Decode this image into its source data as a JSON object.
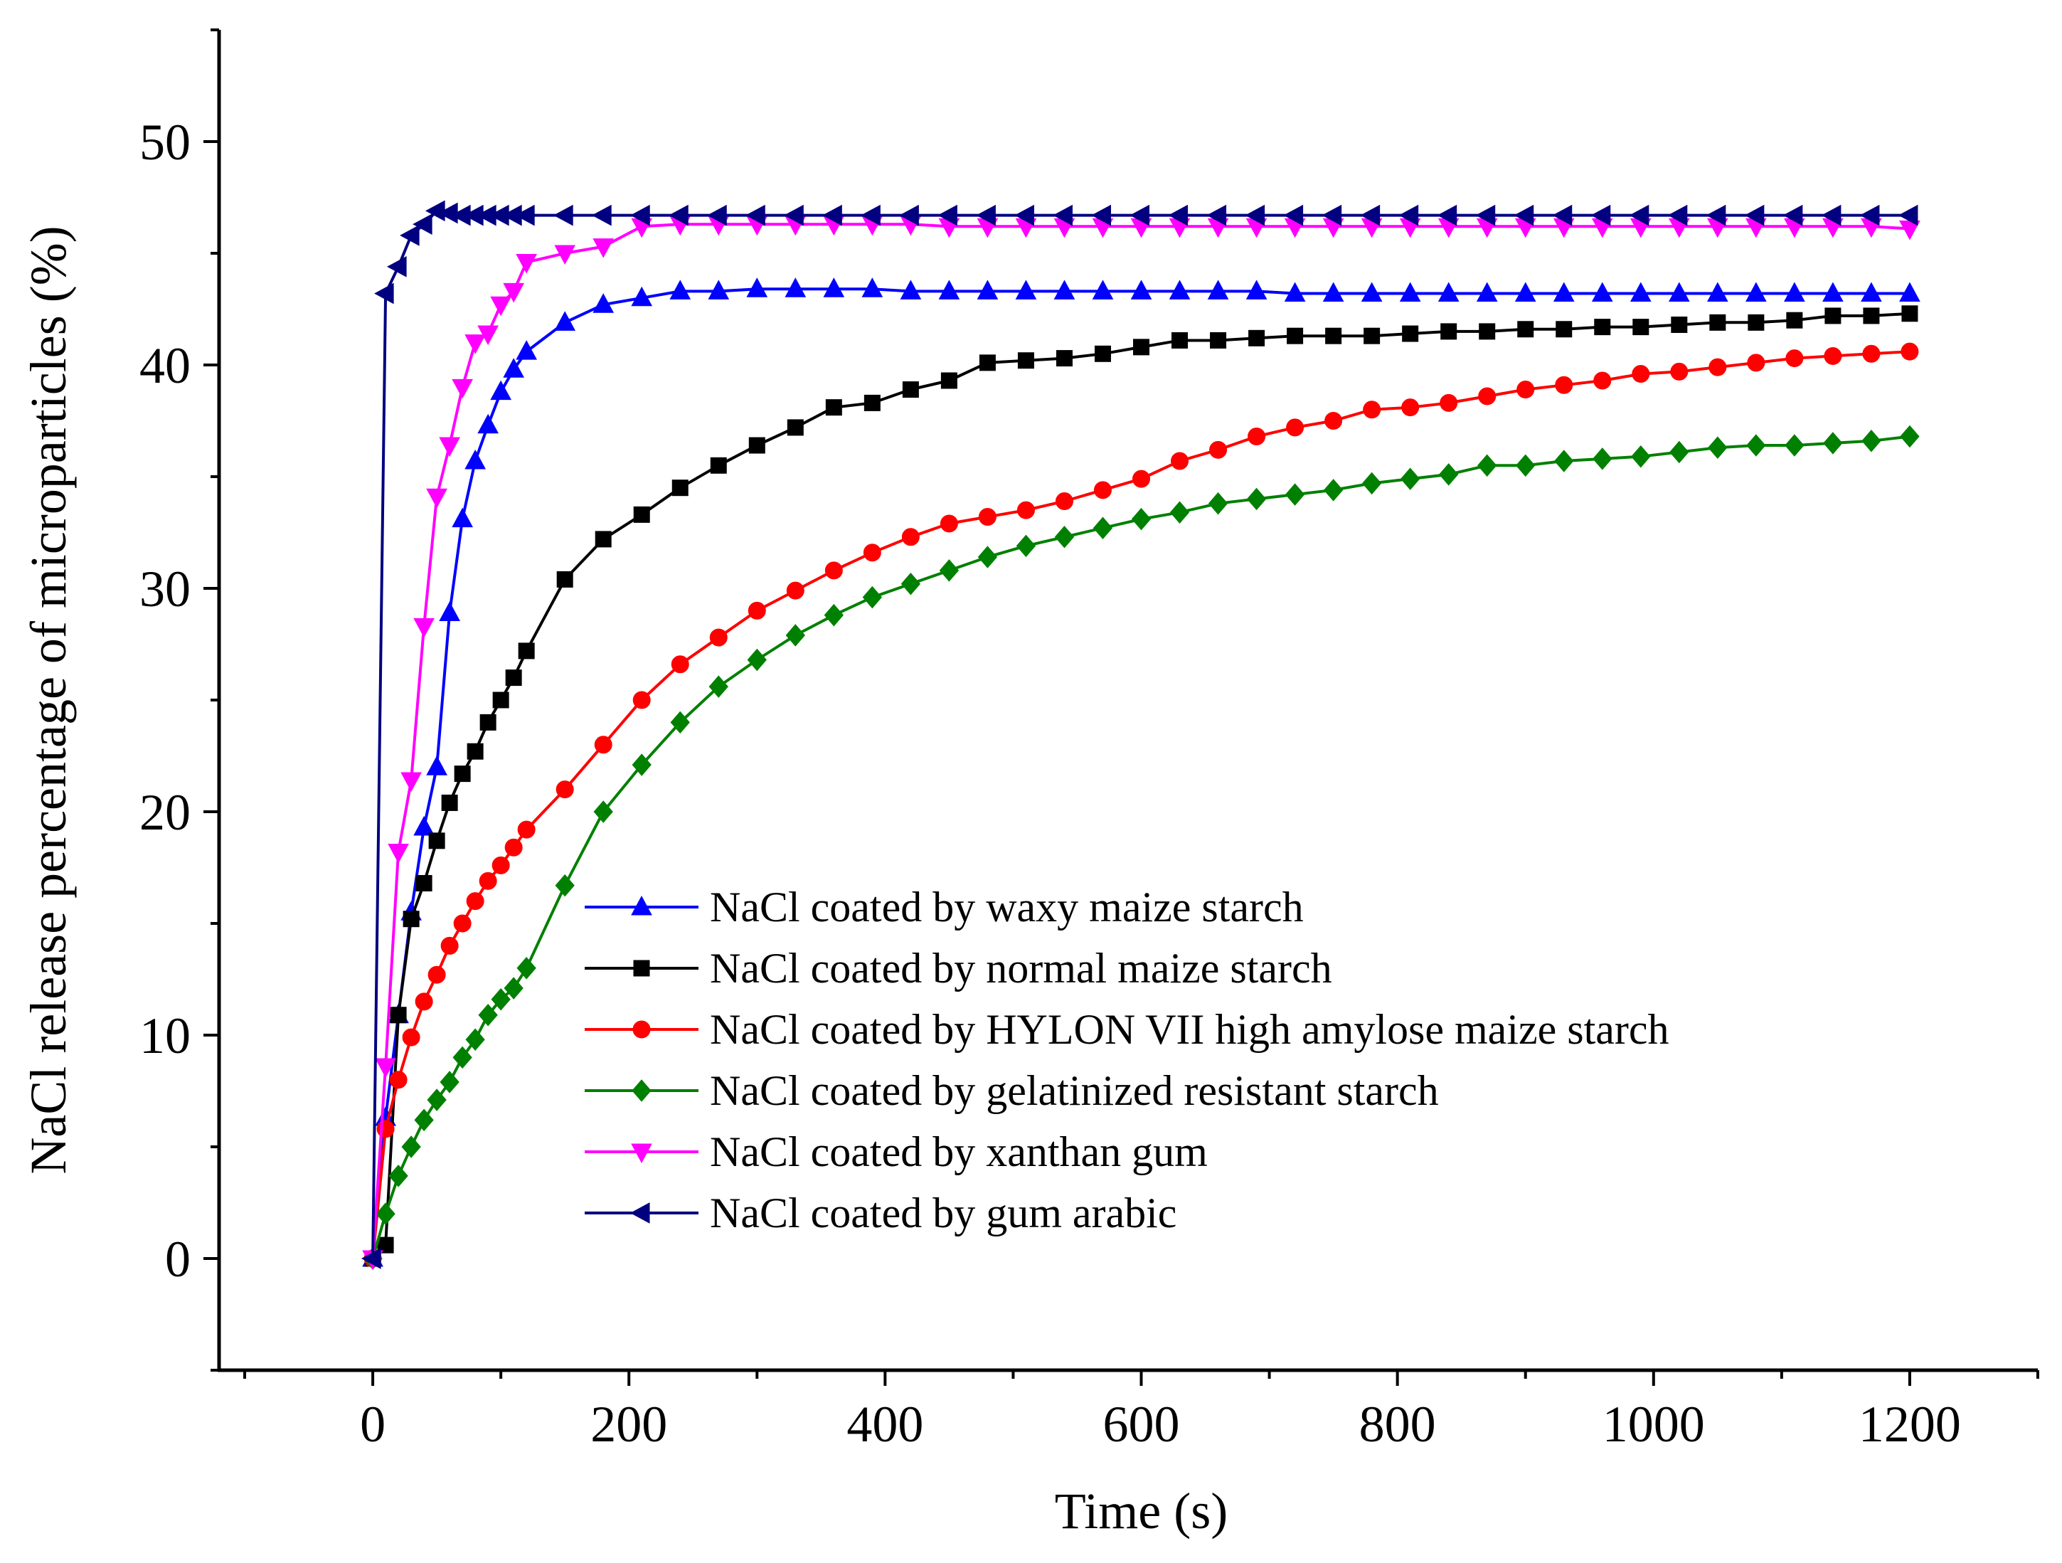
{
  "chart_data": {
    "type": "line",
    "title": "",
    "xlabel": "Time (s)",
    "ylabel": "NaCl release percentage of microparticles (%)",
    "xlim": [
      -120,
      1300
    ],
    "ylim": [
      -5,
      55
    ],
    "xticks": [
      0,
      200,
      400,
      600,
      800,
      1000,
      1200
    ],
    "yticks": [
      0,
      10,
      20,
      30,
      40,
      50
    ],
    "grid": false,
    "legend_position": "center-right",
    "series": [
      {
        "name": "NaCl coated by waxy maize starch",
        "color": "#0000FF",
        "marker": "triangle-up",
        "x": [
          0,
          10,
          20,
          30,
          40,
          50,
          60,
          70,
          80,
          90,
          100,
          110,
          120,
          150,
          180,
          210,
          240,
          270,
          300,
          330,
          360,
          390,
          420,
          450,
          480,
          510,
          540,
          570,
          600,
          630,
          660,
          690,
          720,
          750,
          780,
          810,
          840,
          870,
          900,
          930,
          960,
          990,
          1020,
          1050,
          1080,
          1110,
          1140,
          1170,
          1200
        ],
        "y": [
          0,
          6.3,
          10.9,
          15.5,
          19.3,
          22.0,
          28.9,
          33.1,
          35.7,
          37.3,
          38.8,
          39.8,
          40.6,
          41.9,
          42.7,
          43.0,
          43.3,
          43.3,
          43.4,
          43.4,
          43.4,
          43.4,
          43.3,
          43.3,
          43.3,
          43.3,
          43.3,
          43.3,
          43.3,
          43.3,
          43.3,
          43.3,
          43.2,
          43.2,
          43.2,
          43.2,
          43.2,
          43.2,
          43.2,
          43.2,
          43.2,
          43.2,
          43.2,
          43.2,
          43.2,
          43.2,
          43.2,
          43.2,
          43.2
        ]
      },
      {
        "name": "NaCl coated by normal maize starch",
        "color": "#000000",
        "marker": "square",
        "x": [
          0,
          10,
          20,
          30,
          40,
          50,
          60,
          70,
          80,
          90,
          100,
          110,
          120,
          150,
          180,
          210,
          240,
          270,
          300,
          330,
          360,
          390,
          420,
          450,
          480,
          510,
          540,
          570,
          600,
          630,
          660,
          690,
          720,
          750,
          780,
          810,
          840,
          870,
          900,
          930,
          960,
          990,
          1020,
          1050,
          1080,
          1110,
          1140,
          1170,
          1200
        ],
        "y": [
          0,
          0.6,
          10.9,
          15.2,
          16.8,
          18.7,
          20.4,
          21.7,
          22.7,
          24.0,
          25.0,
          26.0,
          27.2,
          30.4,
          32.2,
          33.3,
          34.5,
          35.5,
          36.4,
          37.2,
          38.1,
          38.3,
          38.9,
          39.3,
          40.1,
          40.2,
          40.3,
          40.5,
          40.8,
          41.1,
          41.1,
          41.2,
          41.3,
          41.3,
          41.3,
          41.4,
          41.5,
          41.5,
          41.6,
          41.6,
          41.7,
          41.7,
          41.8,
          41.9,
          41.9,
          42.0,
          42.2,
          42.2,
          42.3
        ]
      },
      {
        "name": "NaCl coated by HYLON VII high amylose maize starch",
        "color": "#FF0000",
        "marker": "circle",
        "x": [
          0,
          10,
          20,
          30,
          40,
          50,
          60,
          70,
          80,
          90,
          100,
          110,
          120,
          150,
          180,
          210,
          240,
          270,
          300,
          330,
          360,
          390,
          420,
          450,
          480,
          510,
          540,
          570,
          600,
          630,
          660,
          690,
          720,
          750,
          780,
          810,
          840,
          870,
          900,
          930,
          960,
          990,
          1020,
          1050,
          1080,
          1110,
          1140,
          1170,
          1200
        ],
        "y": [
          0,
          5.8,
          8.0,
          9.9,
          11.5,
          12.7,
          14.0,
          15.0,
          16.0,
          16.9,
          17.6,
          18.4,
          19.2,
          21.0,
          23.0,
          25.0,
          26.6,
          27.8,
          29.0,
          29.9,
          30.8,
          31.6,
          32.3,
          32.9,
          33.2,
          33.5,
          33.9,
          34.4,
          34.9,
          35.7,
          36.2,
          36.8,
          37.2,
          37.5,
          38.0,
          38.1,
          38.3,
          38.6,
          38.9,
          39.1,
          39.3,
          39.6,
          39.7,
          39.9,
          40.1,
          40.3,
          40.4,
          40.5,
          40.6
        ]
      },
      {
        "name": "NaCl coated by gelatinized resistant starch",
        "color": "#008000",
        "marker": "diamond",
        "x": [
          0,
          10,
          20,
          30,
          40,
          50,
          60,
          70,
          80,
          90,
          100,
          110,
          120,
          150,
          180,
          210,
          240,
          270,
          300,
          330,
          360,
          390,
          420,
          450,
          480,
          510,
          540,
          570,
          600,
          630,
          660,
          690,
          720,
          750,
          780,
          810,
          840,
          870,
          900,
          930,
          960,
          990,
          1020,
          1050,
          1080,
          1110,
          1140,
          1170,
          1200
        ],
        "y": [
          0,
          2.0,
          3.7,
          5.0,
          6.2,
          7.1,
          7.9,
          9.0,
          9.8,
          10.9,
          11.6,
          12.1,
          13.0,
          16.7,
          20.0,
          22.1,
          24.0,
          25.6,
          26.8,
          27.9,
          28.8,
          29.6,
          30.2,
          30.8,
          31.4,
          31.9,
          32.3,
          32.7,
          33.1,
          33.4,
          33.8,
          34.0,
          34.2,
          34.4,
          34.7,
          34.9,
          35.1,
          35.5,
          35.5,
          35.7,
          35.8,
          35.9,
          36.1,
          36.3,
          36.4,
          36.4,
          36.5,
          36.6,
          36.8
        ]
      },
      {
        "name": "NaCl coated by xanthan gum",
        "color": "#FF00FF",
        "marker": "triangle-down",
        "x": [
          0,
          10,
          20,
          30,
          40,
          50,
          60,
          70,
          80,
          90,
          100,
          110,
          120,
          150,
          180,
          210,
          240,
          270,
          300,
          330,
          360,
          390,
          420,
          450,
          480,
          510,
          540,
          570,
          600,
          630,
          660,
          690,
          720,
          750,
          780,
          810,
          840,
          870,
          900,
          930,
          960,
          990,
          1020,
          1050,
          1080,
          1110,
          1140,
          1170,
          1200
        ],
        "y": [
          0,
          8.6,
          18.2,
          21.4,
          28.3,
          34.1,
          36.4,
          39.0,
          41.0,
          41.4,
          42.7,
          43.3,
          44.6,
          45.0,
          45.3,
          46.2,
          46.3,
          46.3,
          46.3,
          46.3,
          46.3,
          46.3,
          46.3,
          46.2,
          46.2,
          46.2,
          46.2,
          46.2,
          46.2,
          46.2,
          46.2,
          46.2,
          46.2,
          46.2,
          46.2,
          46.2,
          46.2,
          46.2,
          46.2,
          46.2,
          46.2,
          46.2,
          46.2,
          46.2,
          46.2,
          46.2,
          46.2,
          46.2,
          46.1
        ]
      },
      {
        "name": "NaCl coated by gum arabic",
        "color": "#000080",
        "marker": "triangle-left",
        "x": [
          0,
          10,
          20,
          30,
          40,
          50,
          60,
          70,
          80,
          90,
          100,
          110,
          120,
          150,
          180,
          210,
          240,
          270,
          300,
          330,
          360,
          390,
          420,
          450,
          480,
          510,
          540,
          570,
          600,
          630,
          660,
          690,
          720,
          750,
          780,
          810,
          840,
          870,
          900,
          930,
          960,
          990,
          1020,
          1050,
          1080,
          1110,
          1140,
          1170,
          1200
        ],
        "y": [
          0,
          43.2,
          44.4,
          45.8,
          46.3,
          46.9,
          46.8,
          46.7,
          46.7,
          46.7,
          46.7,
          46.7,
          46.7,
          46.7,
          46.7,
          46.7,
          46.7,
          46.7,
          46.7,
          46.7,
          46.7,
          46.7,
          46.7,
          46.7,
          46.7,
          46.7,
          46.7,
          46.7,
          46.7,
          46.7,
          46.7,
          46.7,
          46.7,
          46.7,
          46.7,
          46.7,
          46.7,
          46.7,
          46.7,
          46.7,
          46.7,
          46.7,
          46.7,
          46.7,
          46.7,
          46.7,
          46.7,
          46.7,
          46.7
        ]
      }
    ]
  }
}
